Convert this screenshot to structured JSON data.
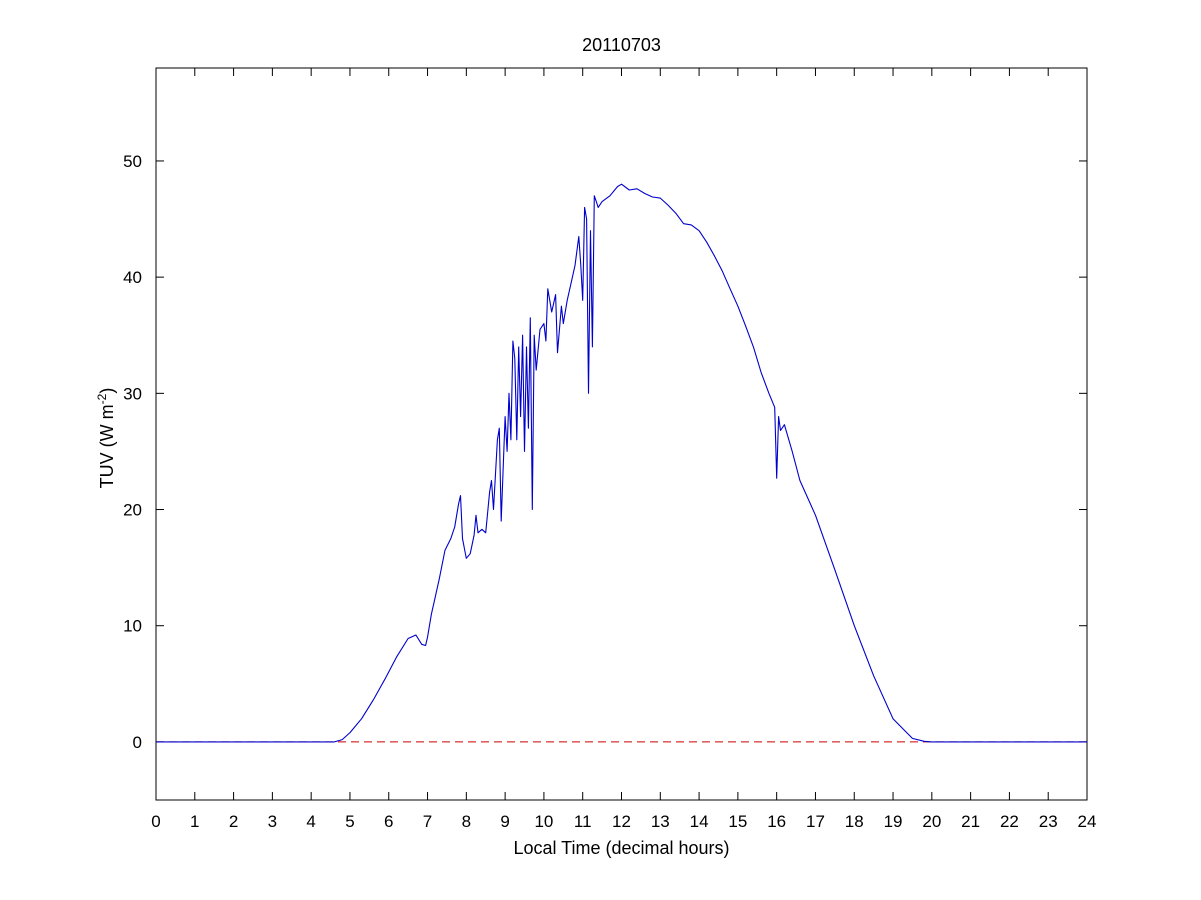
{
  "chart_data": {
    "type": "line",
    "title": "20110703",
    "xlabel": "Local Time (decimal hours)",
    "ylabel": {
      "prefix": "TUV (W m",
      "superscript": "-2",
      "suffix": ")"
    },
    "xlim": [
      0,
      24
    ],
    "ylim": [
      -5,
      58
    ],
    "xticks": [
      0,
      1,
      2,
      3,
      4,
      5,
      6,
      7,
      8,
      9,
      10,
      11,
      12,
      13,
      14,
      15,
      16,
      17,
      18,
      19,
      20,
      21,
      22,
      23,
      24
    ],
    "yticks": [
      0,
      10,
      20,
      30,
      40,
      50
    ],
    "grid": false,
    "reference_line": {
      "y": 0,
      "style": "dashed",
      "color": "#cc0000"
    },
    "series": [
      {
        "color": "#0000cc",
        "x": [
          0,
          4.6,
          4.8,
          5.0,
          5.3,
          5.6,
          5.9,
          6.2,
          6.5,
          6.7,
          6.85,
          6.95,
          7.0,
          7.1,
          7.2,
          7.3,
          7.45,
          7.6,
          7.7,
          7.8,
          7.85,
          7.9,
          8.0,
          8.1,
          8.2,
          8.25,
          8.3,
          8.4,
          8.5,
          8.6,
          8.65,
          8.7,
          8.8,
          8.85,
          8.9,
          9.0,
          9.05,
          9.1,
          9.15,
          9.2,
          9.25,
          9.3,
          9.35,
          9.4,
          9.45,
          9.5,
          9.55,
          9.6,
          9.65,
          9.7,
          9.75,
          9.8,
          9.9,
          10.0,
          10.05,
          10.1,
          10.2,
          10.3,
          10.35,
          10.45,
          10.5,
          10.6,
          10.7,
          10.8,
          10.9,
          10.95,
          11.0,
          11.05,
          11.1,
          11.15,
          11.2,
          11.25,
          11.3,
          11.35,
          11.4,
          11.5,
          11.7,
          11.9,
          12.0,
          12.2,
          12.4,
          12.6,
          12.8,
          13.0,
          13.2,
          13.4,
          13.6,
          13.8,
          14.0,
          14.2,
          14.4,
          14.6,
          14.8,
          15.0,
          15.2,
          15.4,
          15.6,
          15.8,
          15.95,
          16.0,
          16.05,
          16.1,
          16.2,
          16.4,
          16.6,
          17.0,
          17.5,
          18.0,
          18.5,
          19.0,
          19.5,
          19.8,
          20.0,
          24.0
        ],
        "y": [
          0,
          0,
          0.2,
          0.8,
          2.0,
          3.6,
          5.4,
          7.3,
          8.9,
          9.2,
          8.4,
          8.3,
          9.0,
          11.0,
          12.5,
          14.0,
          16.5,
          17.5,
          18.5,
          20.5,
          21.2,
          17.5,
          15.8,
          16.2,
          17.8,
          19.5,
          18.0,
          18.3,
          18.0,
          21.5,
          22.5,
          20.0,
          26.0,
          27.0,
          19.0,
          28.0,
          25.0,
          30.0,
          26.0,
          34.5,
          33.0,
          26.0,
          34.0,
          28.0,
          35.0,
          25.0,
          34.0,
          27.0,
          36.5,
          20.0,
          35.0,
          32.0,
          35.5,
          36.0,
          34.5,
          39.0,
          37.0,
          38.5,
          33.5,
          37.5,
          36.0,
          38.0,
          39.5,
          41.0,
          43.5,
          41.0,
          38.0,
          46.0,
          45.0,
          30.0,
          44.0,
          34.0,
          47.0,
          46.5,
          46.0,
          46.5,
          47.0,
          47.8,
          48.0,
          47.5,
          47.6,
          47.2,
          46.9,
          46.8,
          46.2,
          45.5,
          44.6,
          44.5,
          44.0,
          43.0,
          41.8,
          40.5,
          39.0,
          37.5,
          35.8,
          34.0,
          31.8,
          30.0,
          28.8,
          22.7,
          28.0,
          26.8,
          27.3,
          25.0,
          22.5,
          19.5,
          14.8,
          10.0,
          5.7,
          2.0,
          0.3,
          0.05,
          0,
          0
        ]
      }
    ]
  }
}
